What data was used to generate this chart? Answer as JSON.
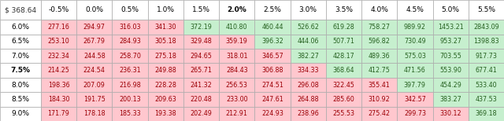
{
  "corner_label": "$ 368.64",
  "col_headers": [
    "-0.5%",
    "0.0%",
    "0.5%",
    "1.0%",
    "1.5%",
    "2.0%",
    "2.5%",
    "3.0%",
    "3.5%",
    "4.0%",
    "4.5%",
    "5.0%",
    "5.5%"
  ],
  "row_headers": [
    "6.0%",
    "6.5%",
    "7.0%",
    "7.5%",
    "8.0%",
    "8.5%",
    "9.0%"
  ],
  "bold_col": 5,
  "bold_row": 3,
  "values": [
    [
      277.16,
      294.97,
      316.03,
      341.3,
      372.19,
      410.8,
      460.44,
      526.62,
      619.28,
      758.27,
      989.92,
      1453.21,
      2843.09
    ],
    [
      253.1,
      267.79,
      284.93,
      305.18,
      329.48,
      359.19,
      396.32,
      444.06,
      507.71,
      596.82,
      730.49,
      953.27,
      1398.83
    ],
    [
      232.34,
      244.58,
      258.7,
      275.18,
      294.65,
      318.01,
      346.57,
      382.27,
      428.17,
      489.36,
      575.03,
      703.55,
      917.73
    ],
    [
      214.25,
      224.54,
      236.31,
      249.88,
      265.71,
      284.43,
      306.88,
      334.33,
      368.64,
      412.75,
      471.56,
      553.9,
      677.41
    ],
    [
      198.36,
      207.09,
      216.98,
      228.28,
      241.32,
      256.53,
      274.51,
      296.08,
      322.45,
      355.41,
      397.79,
      454.29,
      533.4
    ],
    [
      184.3,
      191.75,
      200.13,
      209.63,
      220.48,
      233.0,
      247.61,
      264.88,
      285.6,
      310.92,
      342.57,
      383.27,
      437.53
    ],
    [
      171.79,
      178.18,
      185.33,
      193.38,
      202.49,
      212.91,
      224.93,
      238.96,
      255.53,
      275.42,
      299.73,
      330.12,
      369.18
    ]
  ],
  "threshold": 368.64,
  "color_above": "#c6efce",
  "color_below": "#ffc7ce",
  "text_above": "#276221",
  "text_below": "#9c0006",
  "header_bg": "#ffffff",
  "header_text": "#333333",
  "bold_col_header_text": "#000000",
  "row_header_bold_text": "#000000",
  "grid_color": "#aaaaaa",
  "fig_bg": "#ffffff"
}
